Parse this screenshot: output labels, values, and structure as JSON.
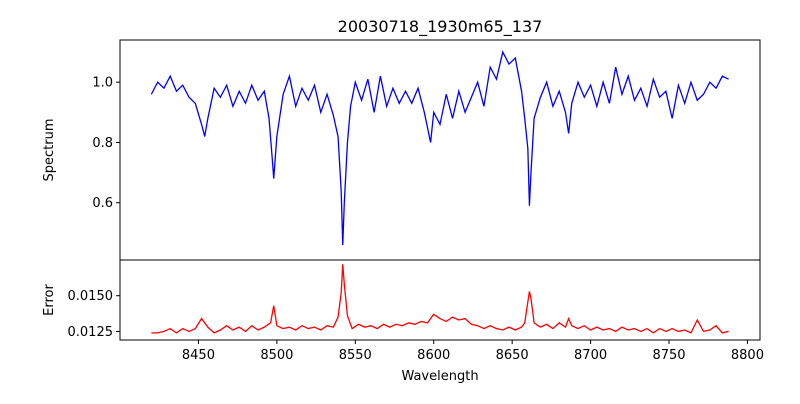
{
  "chart_data": {
    "type": "line",
    "title": "20030718_1930m65_137",
    "xlabel": "Wavelength",
    "x_range": [
      8400,
      8808
    ],
    "x_ticks": [
      8450,
      8500,
      8550,
      8600,
      8650,
      8700,
      8750,
      8800
    ],
    "panels": [
      {
        "id": "spectrum",
        "ylabel": "Spectrum",
        "ylim": [
          0.41,
          1.14
        ],
        "y_ticks": [
          0.6,
          0.8,
          1.0
        ],
        "y_tick_labels": [
          "0.6",
          "0.8",
          "1.0"
        ],
        "color": "#0000ff",
        "x": [
          8420,
          8424,
          8428,
          8432,
          8436,
          8440,
          8444,
          8448,
          8452,
          8454,
          8456,
          8460,
          8464,
          8468,
          8472,
          8476,
          8480,
          8484,
          8488,
          8492,
          8495,
          8497,
          8498,
          8500,
          8504,
          8508,
          8512,
          8516,
          8520,
          8524,
          8528,
          8532,
          8536,
          8539,
          8541,
          8542,
          8543,
          8545,
          8547,
          8550,
          8554,
          8558,
          8562,
          8566,
          8570,
          8574,
          8578,
          8582,
          8586,
          8590,
          8594,
          8598,
          8600,
          8604,
          8608,
          8612,
          8616,
          8620,
          8624,
          8628,
          8632,
          8636,
          8640,
          8644,
          8648,
          8652,
          8656,
          8658,
          8660,
          8661,
          8662,
          8664,
          8668,
          8672,
          8676,
          8680,
          8684,
          8686,
          8688,
          8692,
          8696,
          8700,
          8704,
          8708,
          8712,
          8716,
          8720,
          8724,
          8728,
          8732,
          8736,
          8740,
          8744,
          8748,
          8752,
          8756,
          8760,
          8764,
          8768,
          8772,
          8776,
          8780,
          8784,
          8788
        ],
        "y": [
          0.96,
          1.0,
          0.98,
          1.02,
          0.97,
          0.99,
          0.95,
          0.93,
          0.86,
          0.82,
          0.88,
          0.98,
          0.95,
          0.99,
          0.92,
          0.97,
          0.93,
          0.99,
          0.94,
          0.97,
          0.88,
          0.75,
          0.68,
          0.82,
          0.96,
          1.02,
          0.92,
          0.98,
          0.94,
          0.99,
          0.9,
          0.96,
          0.89,
          0.82,
          0.64,
          0.46,
          0.6,
          0.8,
          0.92,
          1.0,
          0.94,
          1.01,
          0.9,
          1.02,
          0.92,
          0.98,
          0.93,
          0.97,
          0.93,
          0.98,
          0.9,
          0.8,
          0.9,
          0.86,
          0.96,
          0.88,
          0.97,
          0.9,
          0.95,
          1.0,
          0.92,
          1.05,
          1.01,
          1.1,
          1.06,
          1.08,
          0.97,
          0.88,
          0.78,
          0.59,
          0.7,
          0.88,
          0.95,
          1.0,
          0.92,
          0.97,
          0.9,
          0.83,
          0.93,
          1.0,
          0.95,
          0.99,
          0.92,
          1.0,
          0.93,
          1.05,
          0.96,
          1.02,
          0.94,
          0.98,
          0.92,
          1.01,
          0.95,
          0.97,
          0.88,
          0.99,
          0.93,
          1.0,
          0.94,
          0.96,
          1.0,
          0.98,
          1.02,
          1.01
        ]
      },
      {
        "id": "error",
        "ylabel": "Error",
        "ylim": [
          0.0119,
          0.0175
        ],
        "y_ticks": [
          0.0125,
          0.015
        ],
        "y_tick_labels": [
          "0.0125",
          "0.0150"
        ],
        "color": "#ff0000",
        "x": [
          8420,
          8424,
          8428,
          8432,
          8436,
          8440,
          8444,
          8448,
          8452,
          8456,
          8460,
          8464,
          8468,
          8472,
          8476,
          8480,
          8484,
          8488,
          8492,
          8496,
          8498,
          8500,
          8504,
          8508,
          8512,
          8516,
          8520,
          8524,
          8528,
          8532,
          8536,
          8539,
          8541,
          8542,
          8543,
          8545,
          8548,
          8552,
          8556,
          8560,
          8564,
          8568,
          8572,
          8576,
          8580,
          8584,
          8588,
          8592,
          8596,
          8600,
          8604,
          8608,
          8612,
          8616,
          8620,
          8624,
          8628,
          8632,
          8636,
          8640,
          8644,
          8648,
          8652,
          8656,
          8658,
          8661,
          8662,
          8664,
          8668,
          8672,
          8676,
          8680,
          8684,
          8686,
          8688,
          8692,
          8696,
          8700,
          8704,
          8708,
          8712,
          8716,
          8720,
          8724,
          8728,
          8732,
          8736,
          8740,
          8744,
          8748,
          8752,
          8756,
          8760,
          8764,
          8768,
          8772,
          8776,
          8780,
          8784,
          8788
        ],
        "y": [
          0.0124,
          0.0124,
          0.0125,
          0.0127,
          0.0124,
          0.0127,
          0.0125,
          0.0127,
          0.0134,
          0.0128,
          0.0124,
          0.0126,
          0.0129,
          0.0126,
          0.0128,
          0.0125,
          0.0129,
          0.0126,
          0.0128,
          0.0131,
          0.0143,
          0.0129,
          0.0127,
          0.0128,
          0.0126,
          0.0129,
          0.0127,
          0.0128,
          0.0126,
          0.0129,
          0.0128,
          0.0135,
          0.0152,
          0.0172,
          0.0158,
          0.0136,
          0.0127,
          0.013,
          0.0128,
          0.0129,
          0.0127,
          0.013,
          0.0128,
          0.013,
          0.0129,
          0.0131,
          0.013,
          0.0132,
          0.0131,
          0.0137,
          0.0134,
          0.0132,
          0.0135,
          0.0133,
          0.0134,
          0.013,
          0.0129,
          0.0127,
          0.0129,
          0.0127,
          0.0126,
          0.0128,
          0.0126,
          0.0128,
          0.0131,
          0.0153,
          0.0148,
          0.0131,
          0.0128,
          0.013,
          0.0127,
          0.0131,
          0.0128,
          0.0134,
          0.0129,
          0.0127,
          0.0129,
          0.0126,
          0.0128,
          0.0126,
          0.0127,
          0.0125,
          0.0128,
          0.0126,
          0.0127,
          0.0125,
          0.0127,
          0.0124,
          0.0127,
          0.0125,
          0.0127,
          0.0125,
          0.0126,
          0.0124,
          0.0133,
          0.0125,
          0.0126,
          0.0129,
          0.0124,
          0.0125
        ]
      }
    ]
  }
}
